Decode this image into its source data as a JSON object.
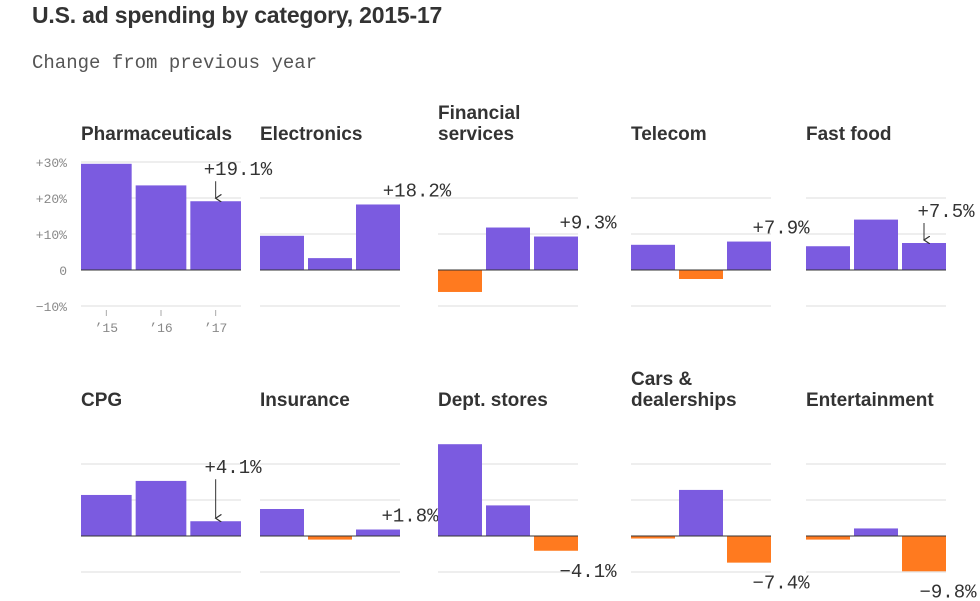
{
  "title": "U.S. ad spending by category, 2015-17",
  "subtitle": "Change from previous year",
  "colors": {
    "positive": "#7B5BE0",
    "negative": "#FF7A1F",
    "grid": "#dcdcdc",
    "baseline": "#333333"
  },
  "chart_data": [
    {
      "type": "bar",
      "title": "Pharmaceuticals",
      "categories": [
        "’15",
        "’16",
        "’17"
      ],
      "values": [
        29.5,
        23.5,
        19.1
      ],
      "label": "+19.1%",
      "ylim": [
        -10,
        30
      ],
      "yticks": [
        "+30%",
        "+20%",
        "+10%",
        "0",
        "−10%"
      ]
    },
    {
      "type": "bar",
      "title": "Electronics",
      "categories": [
        "’15",
        "’16",
        "’17"
      ],
      "values": [
        9.5,
        3.3,
        18.2
      ],
      "label": "+18.2%",
      "ylim": [
        -10,
        30
      ]
    },
    {
      "type": "bar",
      "title": "Financial services",
      "categories": [
        "’15",
        "’16",
        "’17"
      ],
      "values": [
        -6.1,
        11.8,
        9.3
      ],
      "label": "+9.3%",
      "ylim": [
        -10,
        30
      ]
    },
    {
      "type": "bar",
      "title": "Telecom",
      "categories": [
        "’15",
        "’16",
        "’17"
      ],
      "values": [
        7.0,
        -2.5,
        7.9
      ],
      "label": "+7.9%",
      "ylim": [
        -10,
        30
      ]
    },
    {
      "type": "bar",
      "title": "Fast food",
      "categories": [
        "’15",
        "’16",
        "’17"
      ],
      "values": [
        6.6,
        14.0,
        7.5
      ],
      "label": "+7.5%",
      "ylim": [
        -10,
        30
      ]
    },
    {
      "type": "bar",
      "title": "CPG",
      "categories": [
        "’15",
        "’16",
        "’17"
      ],
      "values": [
        11.4,
        15.3,
        4.1
      ],
      "label": "+4.1%",
      "ylim": [
        -10,
        30
      ]
    },
    {
      "type": "bar",
      "title": "Insurance",
      "categories": [
        "’15",
        "’16",
        "’17"
      ],
      "values": [
        7.5,
        -1.0,
        1.8
      ],
      "label": "+1.8%",
      "ylim": [
        -10,
        30
      ]
    },
    {
      "type": "bar",
      "title": "Dept. stores",
      "categories": [
        "’15",
        "’16",
        "’17"
      ],
      "values": [
        25.5,
        8.5,
        -4.1
      ],
      "label": "−4.1%",
      "ylim": [
        -10,
        30
      ]
    },
    {
      "type": "bar",
      "title": "Cars & dealerships",
      "categories": [
        "’15",
        "’16",
        "’17"
      ],
      "values": [
        -0.7,
        12.8,
        -7.4
      ],
      "label": "−7.4%",
      "ylim": [
        -10,
        30
      ]
    },
    {
      "type": "bar",
      "title": "Entertainment",
      "categories": [
        "’15",
        "’16",
        "’17"
      ],
      "values": [
        -1.0,
        2.1,
        -9.8
      ],
      "label": "−9.8%",
      "ylim": [
        -10,
        30
      ]
    }
  ]
}
